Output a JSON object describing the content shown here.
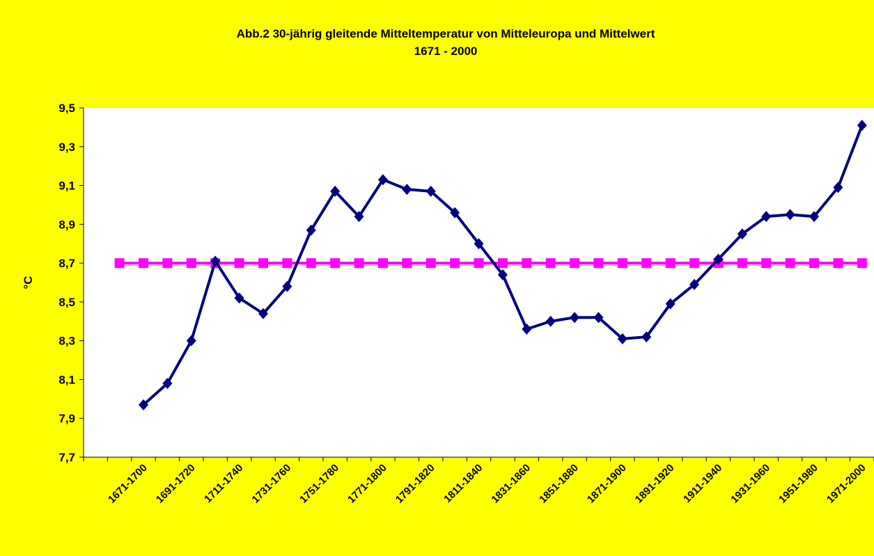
{
  "chart_data": {
    "type": "line",
    "title": [
      "Abb.2 30-jährig gleitende Mitteltemperatur von Mitteleuropa und Mittelwert",
      "1671 - 2000"
    ],
    "y_label": "°C",
    "categories": [
      null,
      null,
      "1671-1700",
      null,
      "1691-1720",
      null,
      "1711-1740",
      null,
      "1731-1760",
      null,
      "1751-1780",
      null,
      "1771-1800",
      null,
      "1791-1820",
      null,
      "1811-1840",
      null,
      "1831-1860",
      null,
      "1851-1880",
      null,
      "1871-1900",
      null,
      "1891-1920",
      null,
      "1911-1940",
      null,
      "1931-1960",
      null,
      "1951-1980",
      null,
      "1971-2000"
    ],
    "series": [
      {
        "color": "#000080",
        "marker": "diamond",
        "values": [
          null,
          null,
          7.97,
          8.08,
          8.3,
          8.71,
          8.52,
          8.44,
          8.58,
          8.87,
          9.07,
          8.94,
          9.13,
          9.08,
          9.07,
          8.96,
          8.8,
          8.64,
          8.36,
          8.4,
          8.42,
          8.42,
          8.31,
          8.32,
          8.49,
          8.59,
          8.72,
          8.85,
          8.94,
          8.95,
          8.94,
          9.09,
          9.41
        ]
      },
      {
        "color": "#ff00ff",
        "marker": "square",
        "values": [
          null,
          8.7,
          8.7,
          8.7,
          8.7,
          8.7,
          8.7,
          8.7,
          8.7,
          8.7,
          8.7,
          8.7,
          8.7,
          8.7,
          8.7,
          8.7,
          8.7,
          8.7,
          8.7,
          8.7,
          8.7,
          8.7,
          8.7,
          8.7,
          8.7,
          8.7,
          8.7,
          8.7,
          8.7,
          8.7,
          8.7,
          8.7,
          8.7
        ]
      }
    ],
    "ylim": [
      7.7,
      9.5
    ],
    "yticks": [
      {
        "value": 7.7,
        "label": "7,7"
      },
      {
        "value": 7.9,
        "label": "7,9"
      },
      {
        "value": 8.1,
        "label": "8,1"
      },
      {
        "value": 8.3,
        "label": "8,3"
      },
      {
        "value": 8.5,
        "label": "8,5"
      },
      {
        "value": 8.7,
        "label": "8,7"
      },
      {
        "value": 8.9,
        "label": "8,9"
      },
      {
        "value": 9.1,
        "label": "9,1"
      },
      {
        "value": 9.3,
        "label": "9,3"
      },
      {
        "value": 9.5,
        "label": "9,5"
      }
    ],
    "grid": false,
    "background": "#ffff00",
    "plot_background": "#ffffff"
  }
}
